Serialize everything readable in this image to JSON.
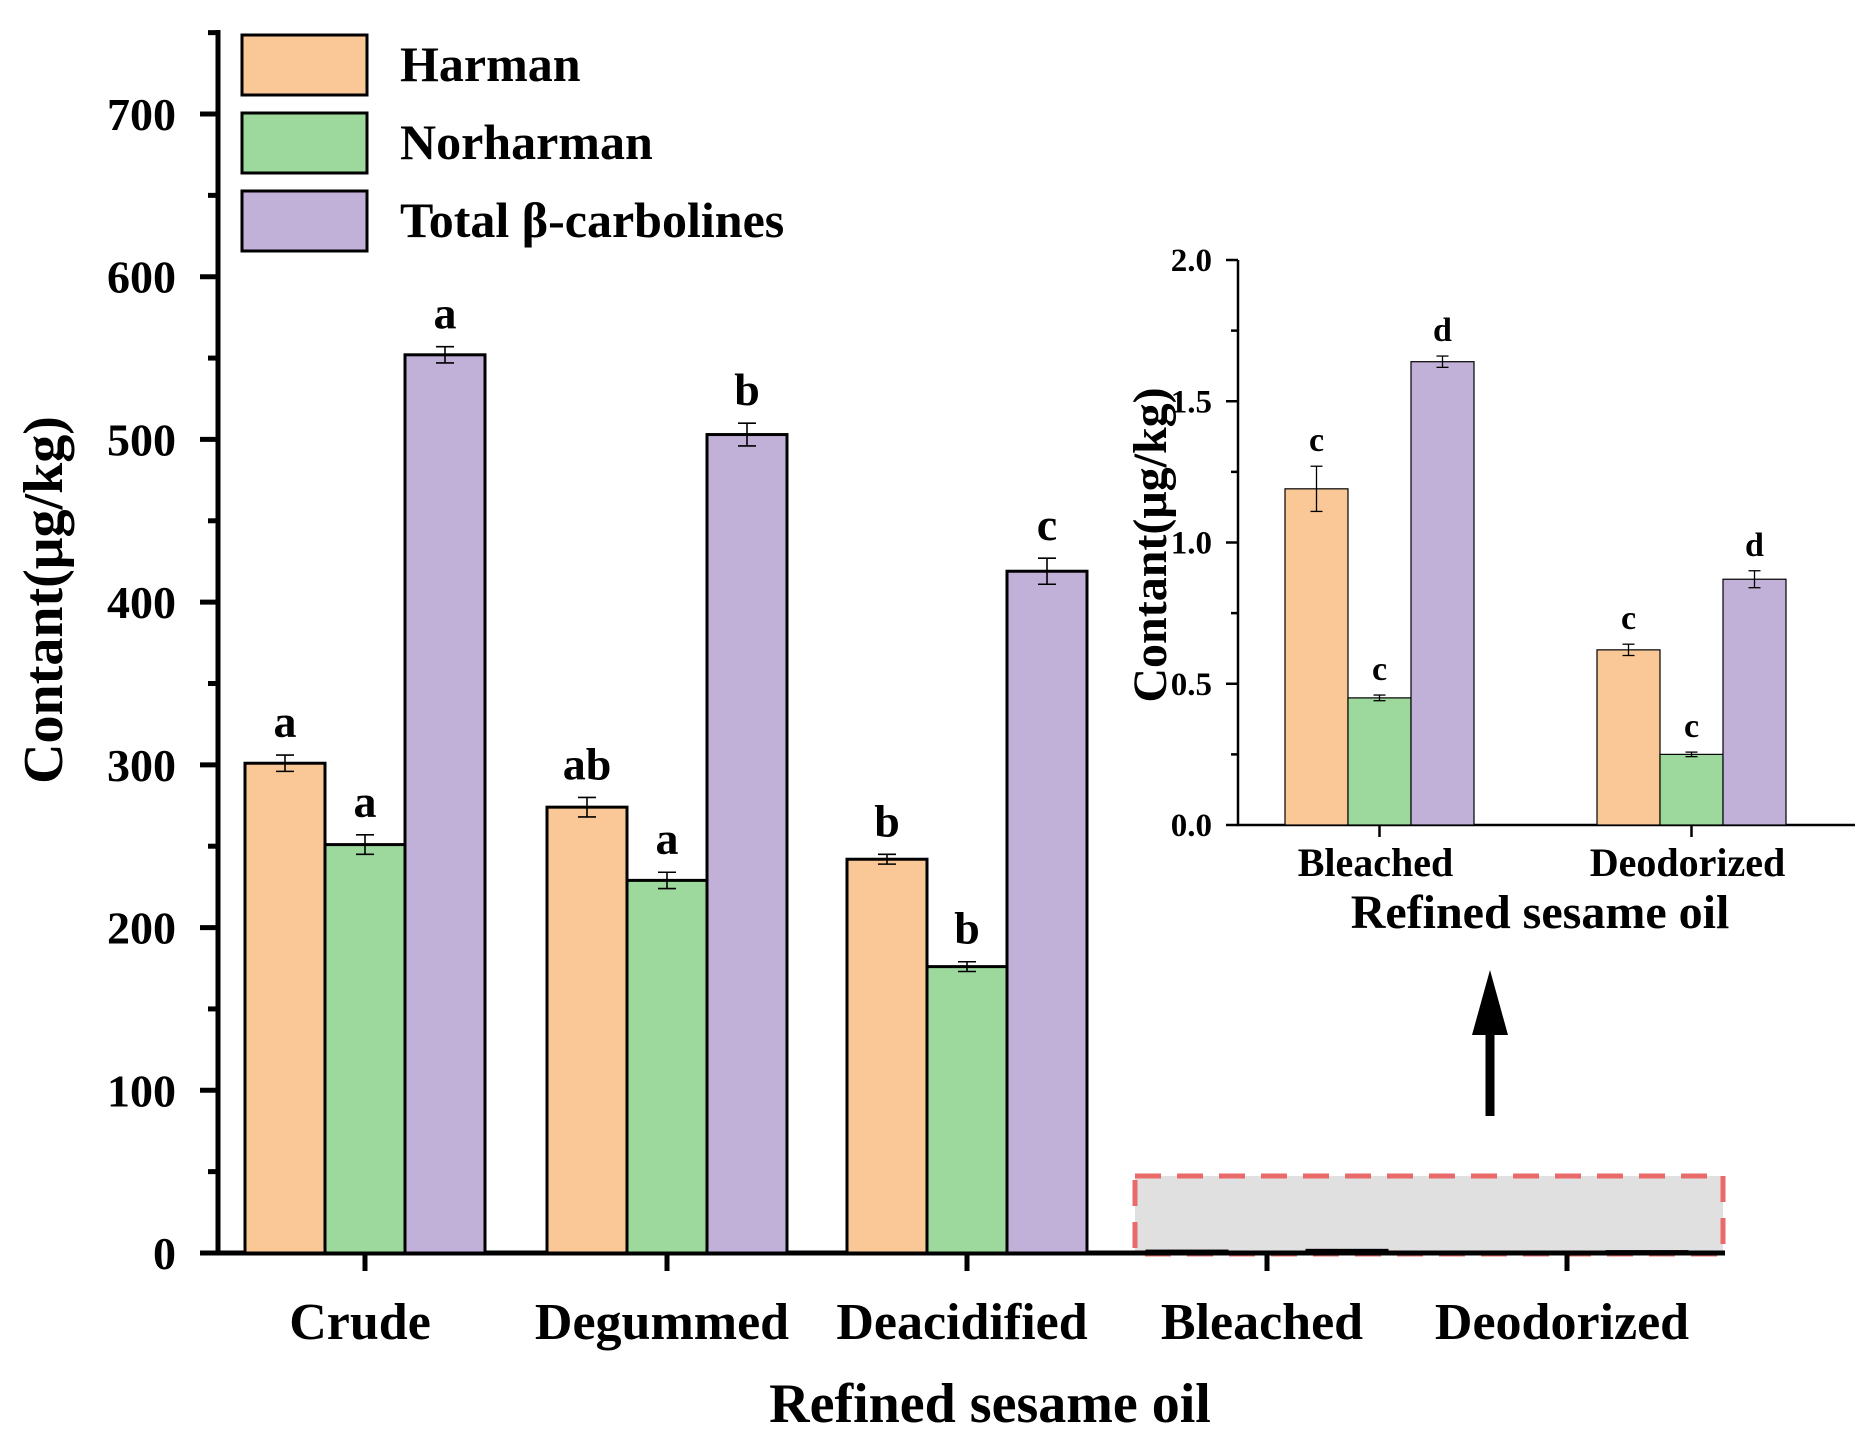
{
  "colors": {
    "harman": "#f9c896",
    "norharman": "#9dd89d",
    "total": "#c1b0d7",
    "highlight_fill": "#e0e0e0",
    "highlight_border": "#e86a6a"
  },
  "chart_data": [
    {
      "type": "bar",
      "categories": [
        "Crude",
        "Degummed",
        "Deacidified",
        "Bleached",
        "Deodorized"
      ],
      "xlabel": "Refined sesame oil",
      "ylabel": "Contant(μg/kg)",
      "ylim": [
        0,
        750
      ],
      "yticks": [
        "0",
        "100",
        "200",
        "300",
        "400",
        "500",
        "600",
        "700"
      ],
      "legend_position": "top-left",
      "series": [
        {
          "name": "Harman",
          "values": [
            301,
            274,
            242,
            1.19,
            0.62
          ],
          "errors": [
            5,
            6,
            3,
            0,
            0
          ],
          "letters": [
            "a",
            "ab",
            "b",
            "",
            ""
          ]
        },
        {
          "name": "Norharman",
          "values": [
            251,
            229,
            176,
            0.45,
            0.25
          ],
          "errors": [
            6,
            5,
            3,
            0,
            0
          ],
          "letters": [
            "a",
            "a",
            "b",
            "",
            ""
          ]
        },
        {
          "name": "Total β-carbolines",
          "values": [
            552,
            503,
            419,
            1.64,
            0.87
          ],
          "errors": [
            5,
            7,
            8,
            0,
            0
          ],
          "letters": [
            "a",
            "b",
            "c",
            "",
            ""
          ]
        }
      ]
    },
    {
      "type": "bar",
      "categories": [
        "Bleached",
        "Deodorized"
      ],
      "xlabel": "Refined sesame oil",
      "ylabel": "Contant(μg/kg)",
      "ylim": [
        0,
        2.0
      ],
      "yticks": [
        "0.0",
        "0.5",
        "1.0",
        "1.5",
        "2.0"
      ],
      "series": [
        {
          "name": "Harman",
          "values": [
            1.19,
            0.62
          ],
          "errors": [
            0.08,
            0.02
          ],
          "letters": [
            "c",
            "c"
          ]
        },
        {
          "name": "Norharman",
          "values": [
            0.45,
            0.25
          ],
          "errors": [
            0.01,
            0.008
          ],
          "letters": [
            "c",
            "c"
          ]
        },
        {
          "name": "Total β-carbolines",
          "values": [
            1.64,
            0.87
          ],
          "errors": [
            0.02,
            0.03
          ],
          "letters": [
            "d",
            "d"
          ]
        }
      ]
    }
  ]
}
